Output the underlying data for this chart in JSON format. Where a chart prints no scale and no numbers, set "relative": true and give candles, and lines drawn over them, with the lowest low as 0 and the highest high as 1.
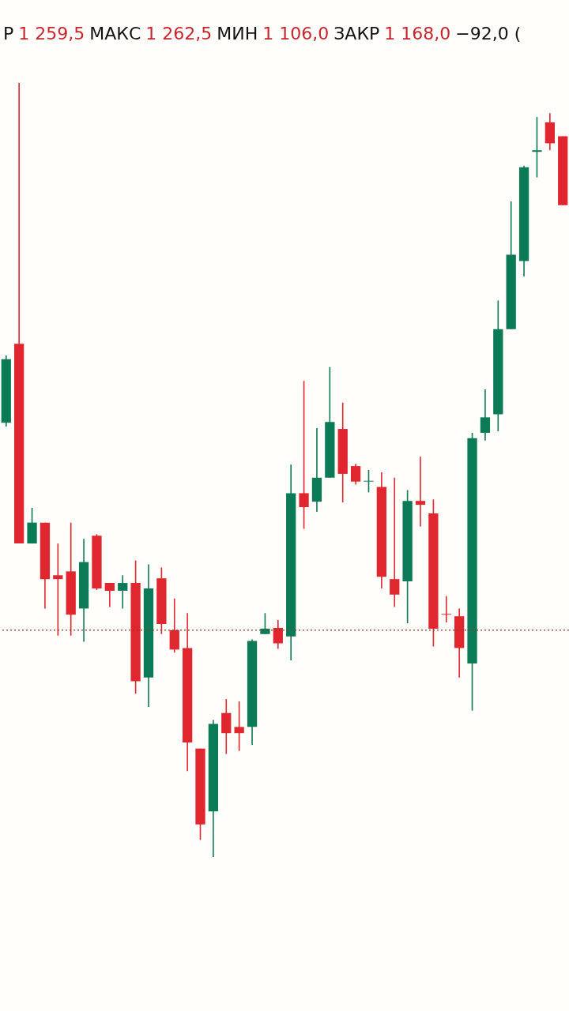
{
  "chart_data": {
    "type": "candlestick",
    "relative": true,
    "annotations": [
      "Р",
      "1 259,5",
      "МАКС",
      "1 262,5",
      "МИН",
      "1 106,0",
      "ЗАКР",
      "1 168,0",
      "−92,0 ("
    ],
    "categories": [
      null,
      null,
      null,
      null,
      null,
      null,
      null,
      null,
      null,
      null,
      null,
      null,
      null,
      null,
      null,
      null,
      null,
      null,
      null,
      null,
      null,
      null,
      null,
      null,
      null,
      null,
      null,
      null,
      null,
      null,
      null,
      null,
      null,
      null,
      null,
      null,
      null,
      null,
      null,
      null,
      null,
      null,
      null,
      null
    ],
    "ohlc": [
      [
        0.561,
        0.648,
        0.556,
        0.643
      ],
      [
        0.663,
        1,
        0.405,
        0.405
      ],
      [
        0.405,
        0.451,
        0.405,
        0.432
      ],
      [
        0.432,
        0.432,
        0.321,
        0.359
      ],
      [
        0.364,
        0.405,
        0.286,
        0.359
      ],
      [
        0.369,
        0.432,
        0.286,
        0.313
      ],
      [
        0.321,
        0.411,
        0.278,
        0.381
      ],
      [
        0.415,
        0.417,
        0.345,
        0.347
      ],
      [
        0.354,
        0.354,
        0.323,
        0.344
      ],
      [
        0.344,
        0.364,
        0.321,
        0.354
      ],
      [
        0.354,
        0.383,
        0.211,
        0.227
      ],
      [
        0.232,
        0.378,
        0.194,
        0.347
      ],
      [
        0.36,
        0.374,
        0.288,
        0.301
      ],
      [
        0.293,
        0.334,
        0.264,
        0.268
      ],
      [
        0.27,
        0.315,
        0.111,
        0.148
      ],
      [
        0.14,
        0.14,
        0.022,
        0.042
      ],
      [
        0.059,
        0.177,
        0,
        0.172
      ],
      [
        0.186,
        0.204,
        0.133,
        0.16
      ],
      [
        0.168,
        0.201,
        0.137,
        0.16
      ],
      [
        0.168,
        0.281,
        0.145,
        0.279
      ],
      [
        0.288,
        0.315,
        0.288,
        0.295
      ],
      [
        0.296,
        0.306,
        0.269,
        0.276
      ],
      [
        0.285,
        0.507,
        0.254,
        0.47
      ],
      [
        0.47,
        0.615,
        0.424,
        0.452
      ],
      [
        0.459,
        0.554,
        0.446,
        0.49
      ],
      [
        0.49,
        0.633,
        0.49,
        0.562
      ],
      [
        0.553,
        0.587,
        0.458,
        0.495
      ],
      [
        0.505,
        0.508,
        0.481,
        0.485
      ],
      [
        0.485,
        0.5,
        0.471,
        0.486
      ],
      [
        0.478,
        0.497,
        0.347,
        0.362
      ],
      [
        0.359,
        0.49,
        0.323,
        0.339
      ],
      [
        0.356,
        0.474,
        0.302,
        0.46
      ],
      [
        0.46,
        0.517,
        0.427,
        0.455
      ],
      [
        0.444,
        0.462,
        0.272,
        0.295
      ],
      [
        0.314,
        0.337,
        0.303,
        0.313
      ],
      [
        0.311,
        0.321,
        0.232,
        0.27
      ],
      [
        0.25,
        0.548,
        0.189,
        0.541
      ],
      [
        0.548,
        0.604,
        0.538,
        0.568
      ],
      [
        0.572,
        0.719,
        0.55,
        0.682
      ],
      [
        0.682,
        0.847,
        0.682,
        0.778
      ],
      [
        0.77,
        0.893,
        0.75,
        0.891
      ],
      [
        0.911,
        0.956,
        0.878,
        0.913
      ],
      [
        0.949,
        0.961,
        0.913,
        0.922
      ],
      [
        0.931,
        0.931,
        0.842,
        0.842
      ]
    ],
    "colors": [
      "#0b7a56",
      "#e0262f",
      "#0b7a56",
      "#e0262f",
      "#e0262f",
      "#e0262f",
      "#0b7a56",
      "#e0262f",
      "#e0262f",
      "#0b7a56",
      "#e0262f",
      "#0b7a56",
      "#e0262f",
      "#e0262f",
      "#e0262f",
      "#e0262f",
      "#0b7a56",
      "#e0262f",
      "#e0262f",
      "#0b7a56",
      "#0b7a56",
      "#e0262f",
      "#0b7a56",
      "#e0262f",
      "#0b7a56",
      "#0b7a56",
      "#e0262f",
      "#e0262f",
      "#0b7a56",
      "#e0262f",
      "#e0262f",
      "#0b7a56",
      "#e0262f",
      "#e0262f",
      "#e0262f",
      "#e0262f",
      "#0b7a56",
      "#0b7a56",
      "#0b7a56",
      "#0b7a56",
      "#0b7a56",
      "#0b7a56",
      "#e0262f",
      "#e0262f"
    ],
    "ref_lines": [
      {
        "axis": "y",
        "value": 0.293,
        "line_style": "dotted",
        "color": "#8b3a2a"
      }
    ]
  }
}
